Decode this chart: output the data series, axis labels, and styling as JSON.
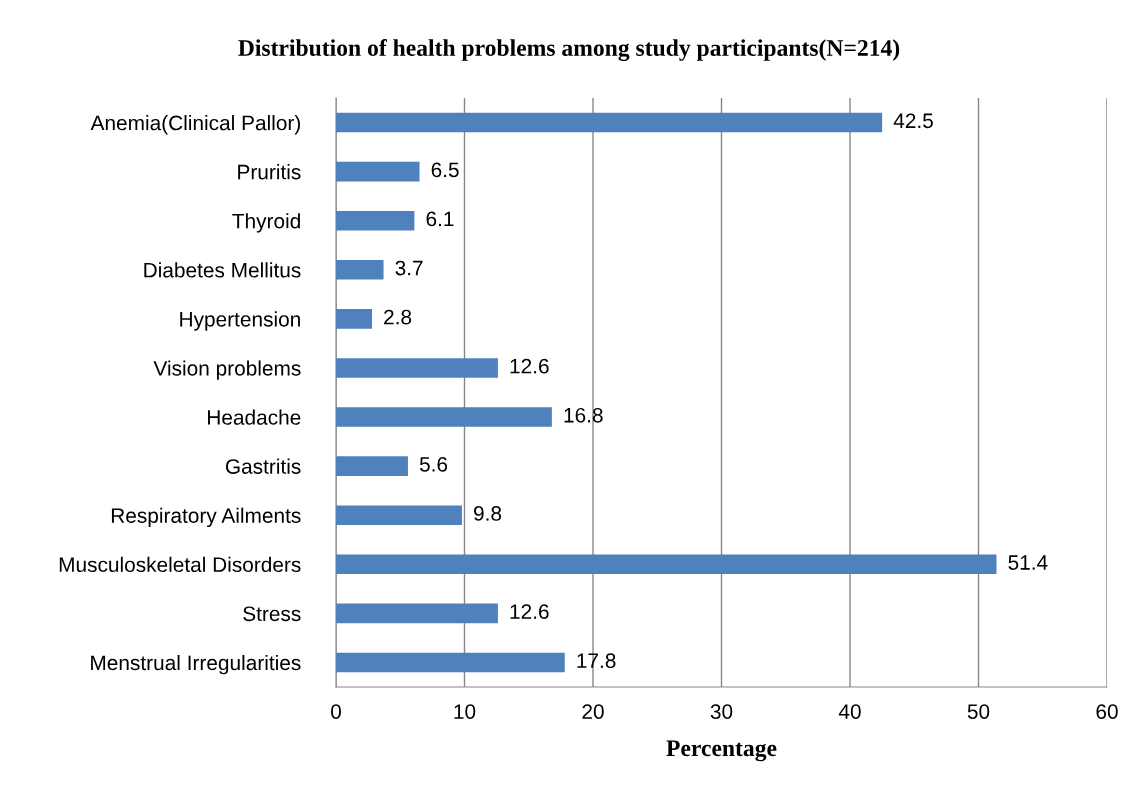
{
  "chart_data": {
    "type": "bar",
    "orientation": "horizontal",
    "title": "Distribution of health problems among study participants(N=214)",
    "xlabel": "Percentage",
    "categories": [
      "Anemia(Clinical Pallor)",
      "Pruritis",
      "Thyroid",
      "Diabetes Mellitus",
      "Hypertension",
      "Vision problems",
      "Headache",
      "Gastritis",
      "Respiratory Ailments",
      "Musculoskeletal Disorders",
      "Stress",
      "Menstrual Irregularities"
    ],
    "values": [
      42.5,
      6.5,
      6.1,
      3.7,
      2.8,
      12.6,
      16.8,
      5.6,
      9.8,
      51.4,
      12.6,
      17.8
    ],
    "color": "#4f81bd",
    "xlim": [
      0,
      60
    ],
    "xticks": [
      0,
      10,
      20,
      30,
      40,
      50,
      60
    ],
    "grid": "x",
    "data_labels": true,
    "legend": false
  }
}
